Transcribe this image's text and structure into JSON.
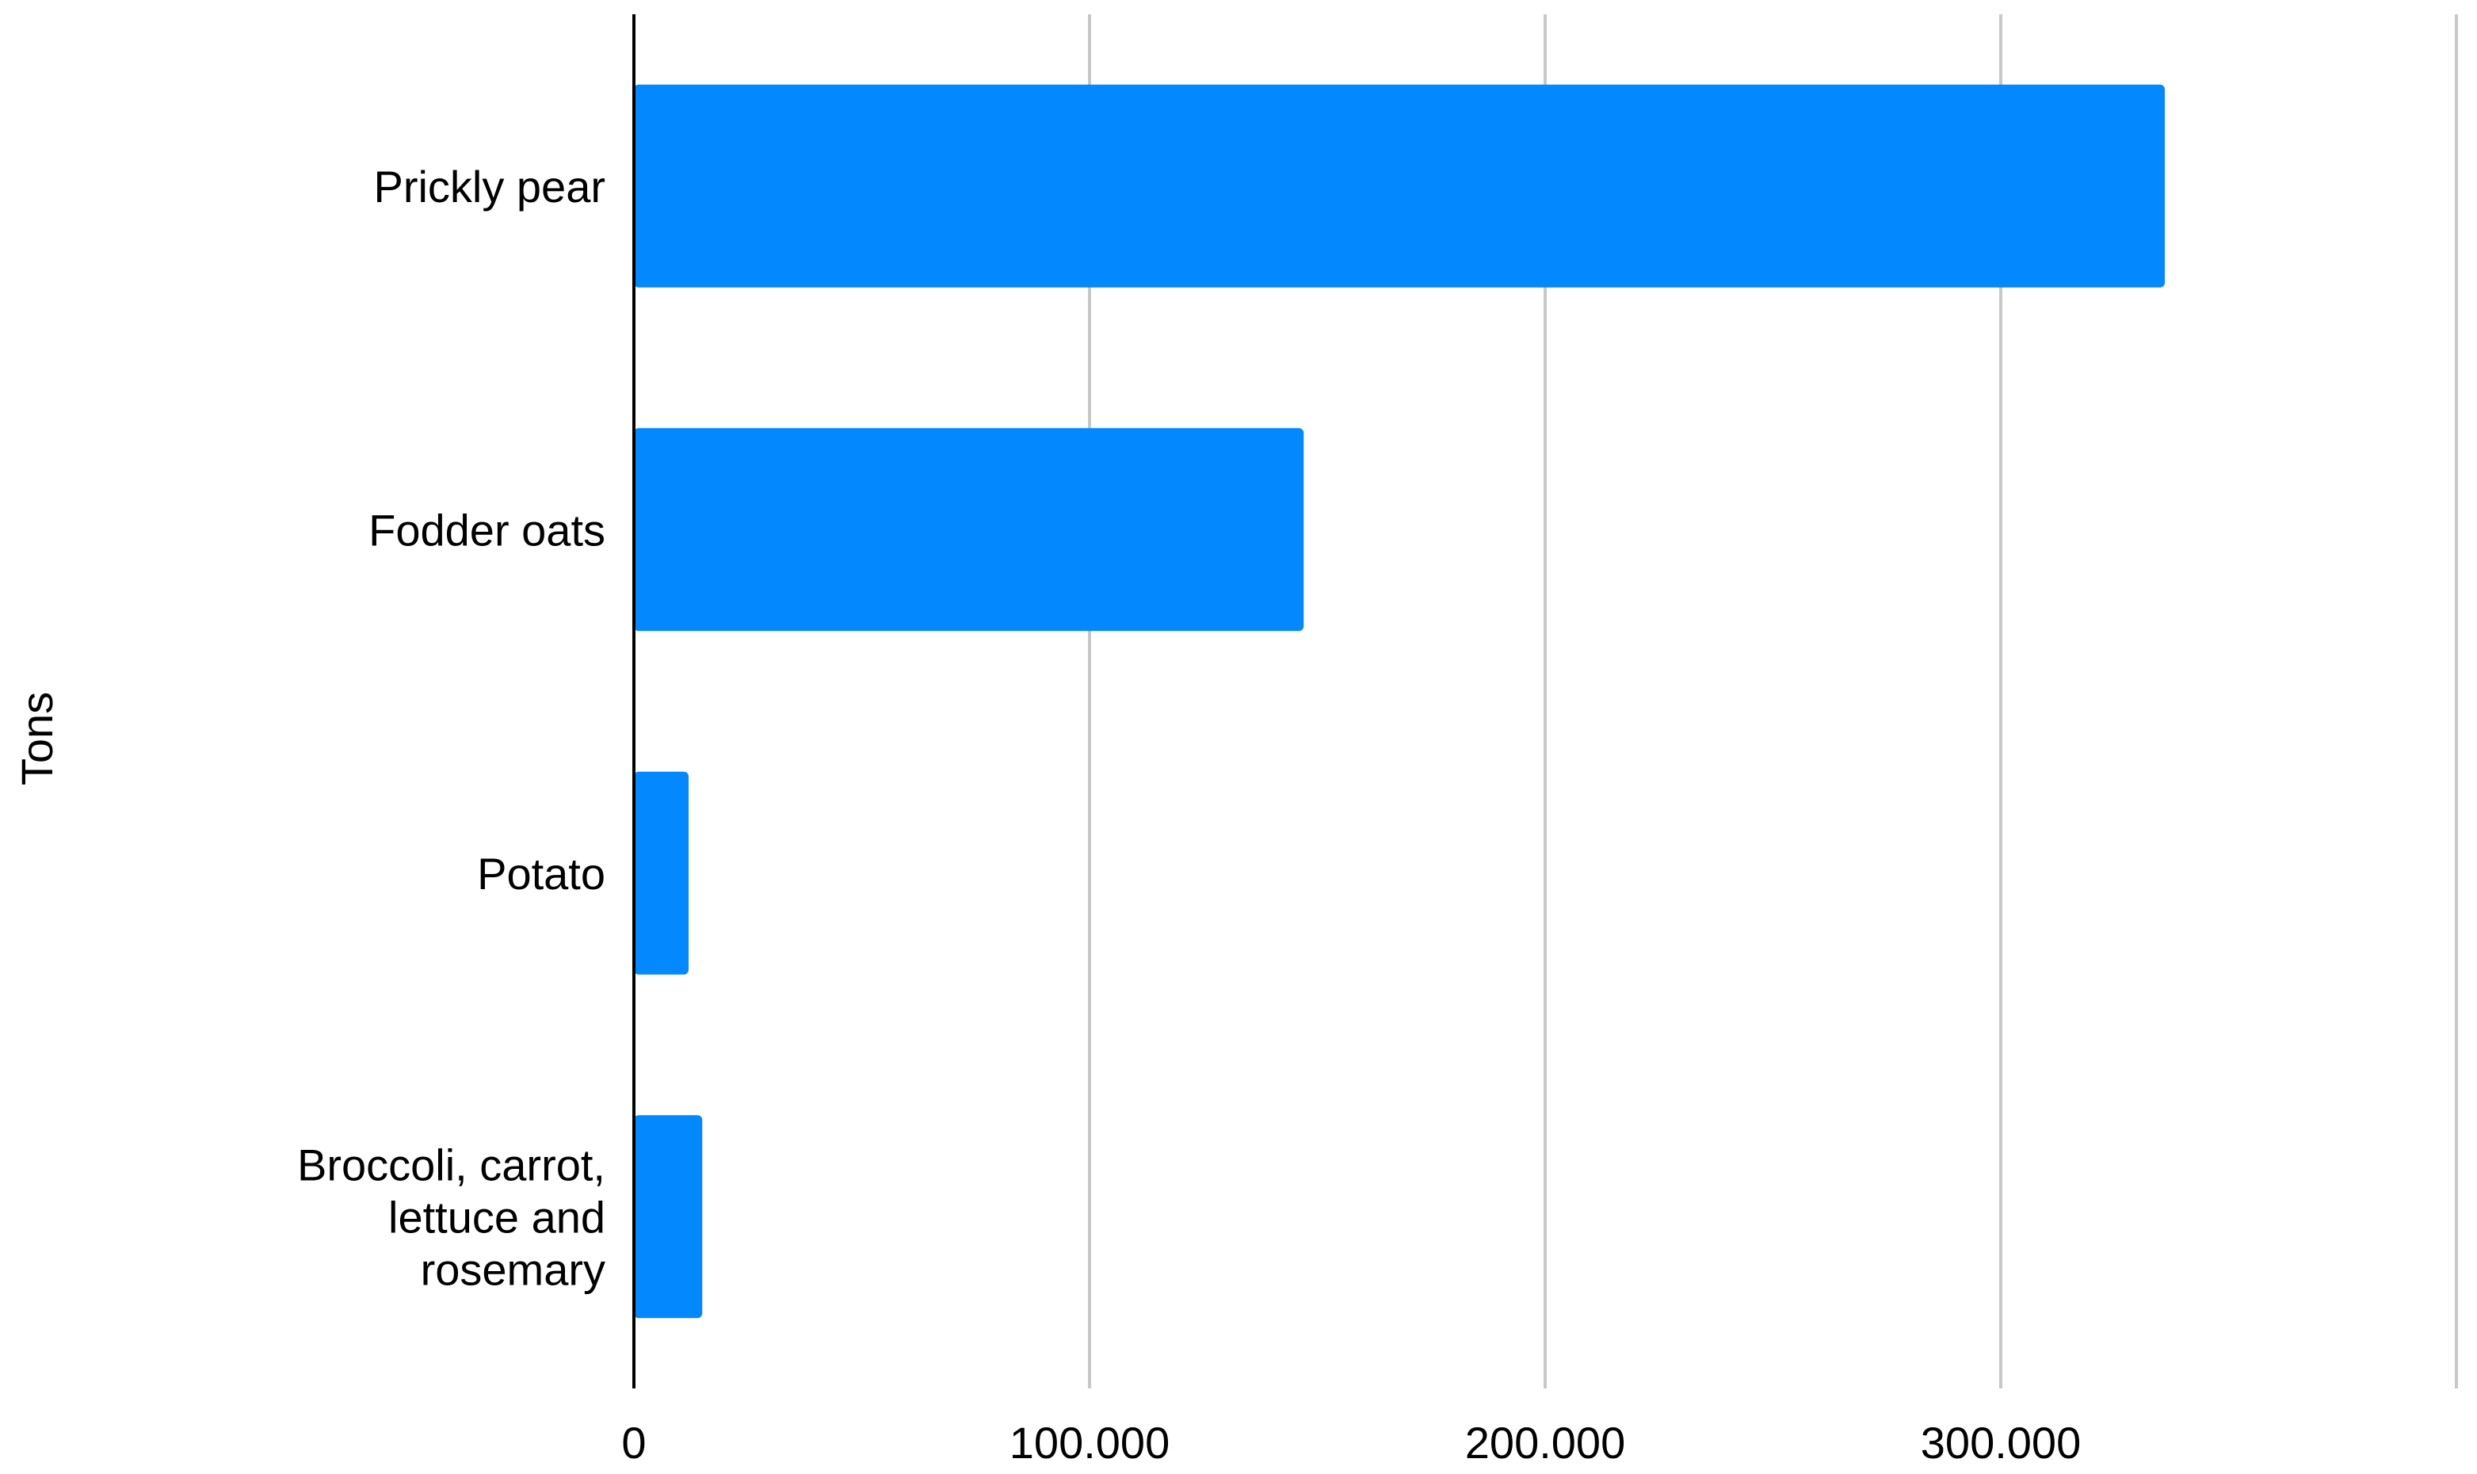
{
  "chart_data": {
    "type": "bar",
    "orientation": "horizontal",
    "title": "",
    "xlabel": "",
    "ylabel": "Tons",
    "categories": [
      [
        "Prickly pear"
      ],
      [
        "Fodder oats"
      ],
      [
        "Potato"
      ],
      [
        "Broccoli, carrot,",
        "lettuce and",
        "rosemary"
      ]
    ],
    "values": [
      336000,
      147000,
      12000,
      15000
    ],
    "xlim": [
      0,
      400000
    ],
    "xticks": [
      0,
      100000,
      200000,
      300000,
      400000
    ],
    "xtick_labels": [
      "0",
      "100.000",
      "200.000",
      "300.000",
      ""
    ],
    "grid": true,
    "legend": "none",
    "colors": {
      "bar": "#0388fd",
      "grid": "#c8c8c8",
      "axis": "#000000"
    }
  }
}
